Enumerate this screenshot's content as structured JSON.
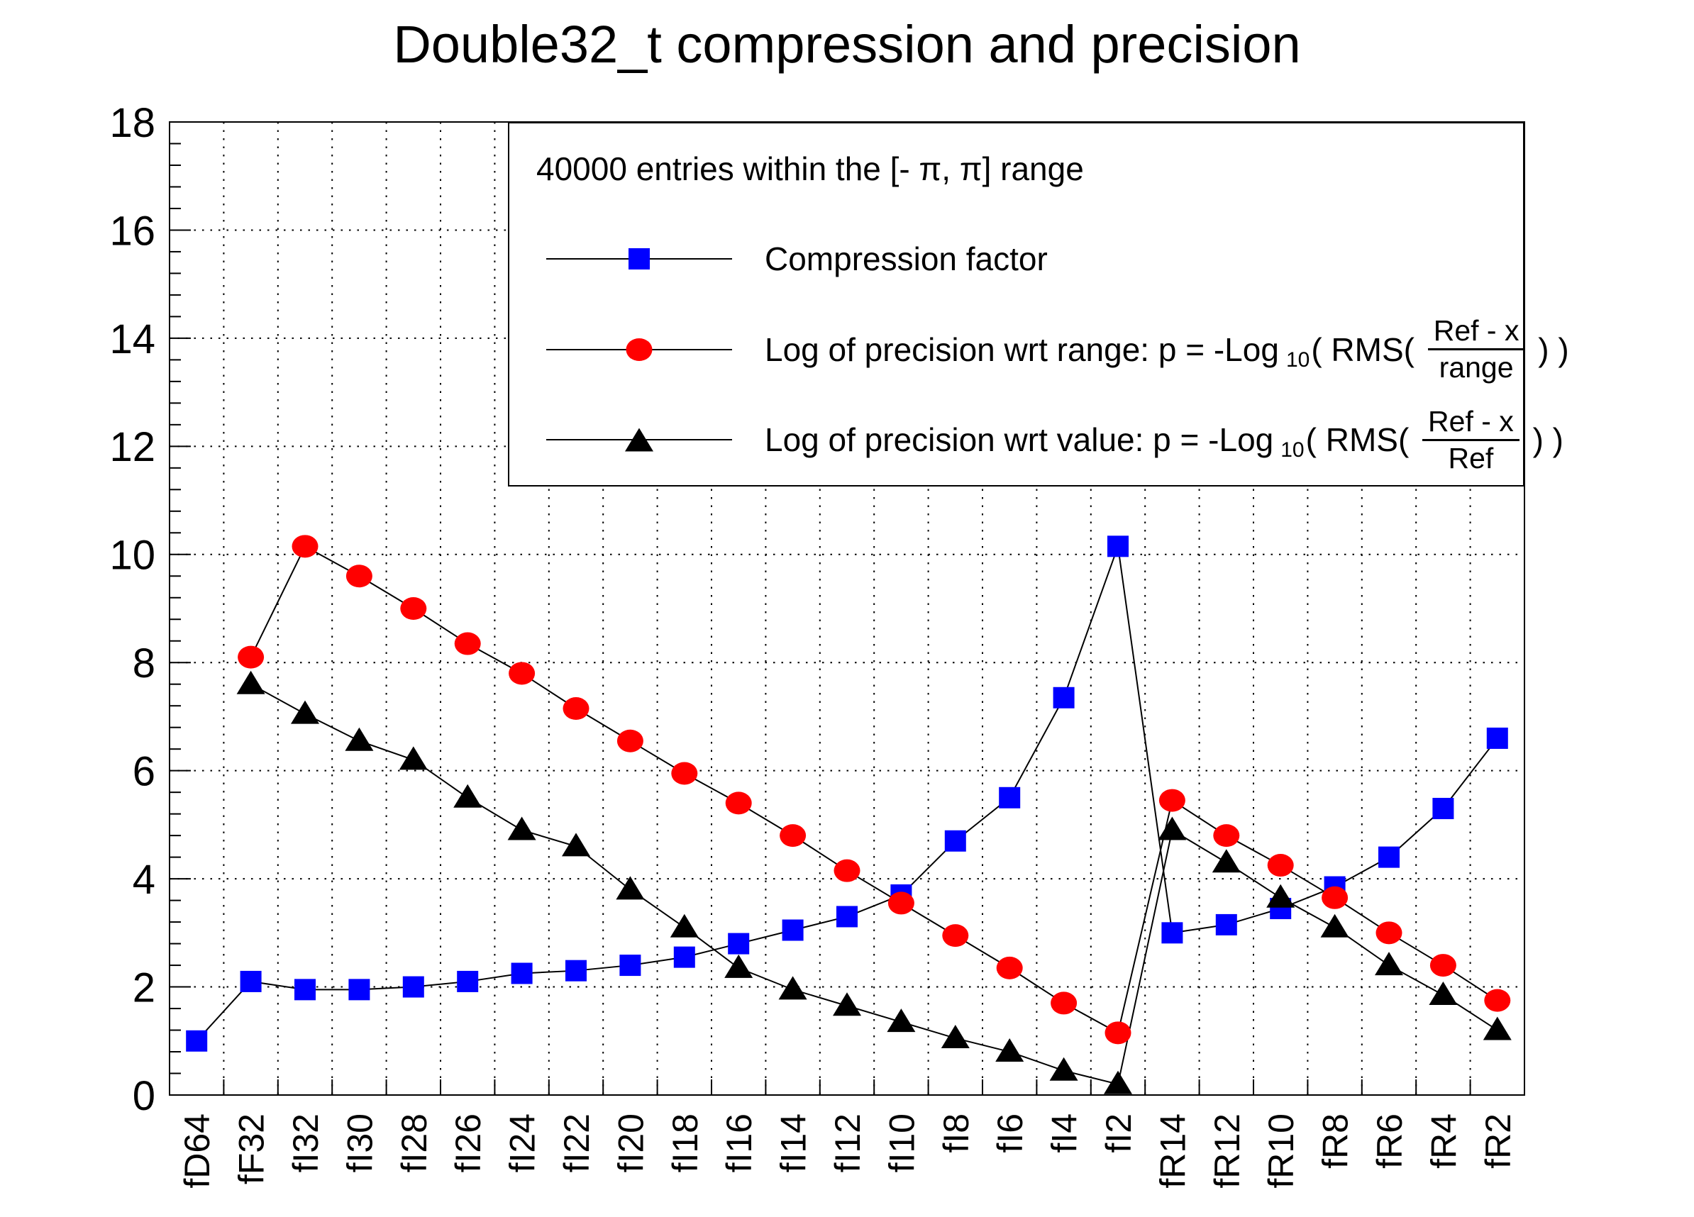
{
  "title": "Double32_t compression and precision",
  "colors": {
    "compression": "#0000ff",
    "precision_range": "#ff0000",
    "precision_value": "#000000",
    "line": "#000000",
    "background": "#ffffff"
  },
  "legend": {
    "header": "40000 entries within the [- π, π] range",
    "entries": [
      {
        "marker": "square",
        "color": "#0000ff",
        "label": "Compression factor"
      },
      {
        "marker": "circle",
        "color": "#ff0000",
        "prefix": "Log of precision wrt range: p = -Log",
        "sub": "10",
        "mid": "( RMS( ",
        "frac_num": "Ref - x",
        "frac_den": "range",
        "suffix": " ) )"
      },
      {
        "marker": "triangle",
        "color": "#000000",
        "prefix": "Log of precision wrt value: p = -Log",
        "sub": "10",
        "mid": "( RMS( ",
        "frac_num": "Ref - x",
        "frac_den": "Ref",
        "suffix": " ) )"
      }
    ]
  },
  "axes": {
    "y_min": 0,
    "y_max": 18,
    "y_ticks": [
      0,
      2,
      4,
      6,
      8,
      10,
      12,
      14,
      16,
      18
    ],
    "y_minor_step": 0.4,
    "grid": "dotted"
  },
  "chart_data": {
    "type": "line",
    "title": "Double32_t compression and precision",
    "xlabel": "",
    "ylabel": "",
    "ylim": [
      0,
      18
    ],
    "grid": "dotted, horizontal at even values and vertical at bin edges",
    "legend_position": "top-right inside frame",
    "categories": [
      "fD64",
      "fF32",
      "fI32",
      "fI30",
      "fI28",
      "fI26",
      "fI24",
      "fI22",
      "fI20",
      "fI18",
      "fI16",
      "fI14",
      "fI12",
      "fI10",
      "fI8",
      "fI6",
      "fI4",
      "fI2",
      "fR14",
      "fR12",
      "fR10",
      "fR8",
      "fR6",
      "fR4",
      "fR2"
    ],
    "series": [
      {
        "name": "Compression factor",
        "marker": "square",
        "color": "#0000ff",
        "values": [
          1.0,
          2.1,
          1.95,
          1.95,
          2.0,
          2.1,
          2.25,
          2.3,
          2.4,
          2.55,
          2.8,
          3.05,
          3.3,
          3.7,
          4.7,
          5.5,
          7.35,
          10.15,
          3.0,
          3.15,
          3.45,
          3.85,
          4.4,
          5.3,
          6.6
        ]
      },
      {
        "name": "Log of precision wrt range",
        "marker": "circle",
        "color": "#ff0000",
        "values": [
          null,
          8.1,
          10.15,
          9.6,
          9.0,
          8.35,
          7.8,
          7.15,
          6.55,
          5.95,
          5.4,
          4.8,
          4.15,
          3.55,
          2.95,
          2.35,
          1.7,
          1.15,
          5.45,
          4.8,
          4.25,
          3.65,
          3.0,
          2.4,
          1.75
        ]
      },
      {
        "name": "Log of precision wrt value",
        "marker": "triangle",
        "color": "#000000",
        "values": [
          null,
          7.6,
          7.05,
          6.55,
          6.2,
          5.5,
          4.9,
          4.6,
          3.8,
          3.1,
          2.35,
          1.95,
          1.65,
          1.35,
          1.05,
          0.8,
          0.45,
          0.2,
          4.9,
          4.3,
          3.65,
          3.1,
          2.4,
          1.85,
          1.2
        ]
      }
    ]
  }
}
